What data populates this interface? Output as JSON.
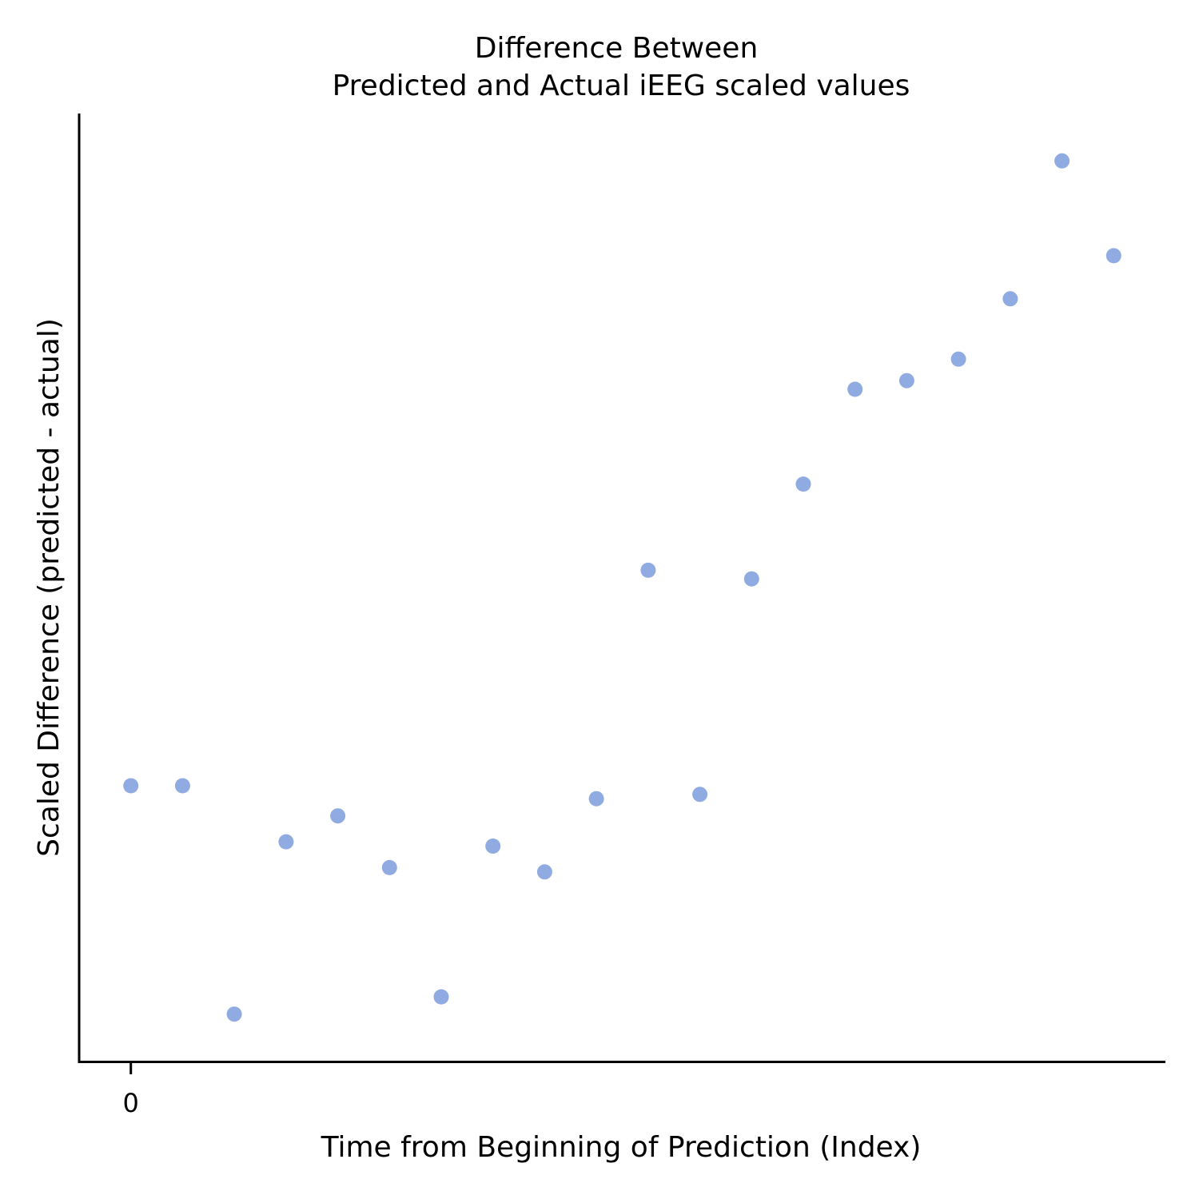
{
  "chart_data": {
    "type": "scatter",
    "title_lines": [
      "Difference Between",
      "Predicted and Actual iEEG scaled values"
    ],
    "xlabel": "Time from Beginning of Prediction (Index)",
    "ylabel": "Scaled Difference (predicted - actual)",
    "x_ticks": [
      0
    ],
    "y_ticks": [],
    "xlim": [
      -1,
      20
    ],
    "ylim": [
      -0.2,
      2.0
    ],
    "grid": false,
    "legend": "none",
    "marker_color": "#8fabe1",
    "axis_color": "#000000",
    "x": [
      0,
      1,
      2,
      3,
      4,
      5,
      6,
      7,
      8,
      9,
      10,
      11,
      12,
      13,
      14,
      15,
      16,
      17,
      18,
      19
    ],
    "y": [
      0.44,
      0.44,
      -0.09,
      0.31,
      0.37,
      0.25,
      -0.05,
      0.3,
      0.24,
      0.41,
      0.94,
      0.42,
      0.92,
      1.14,
      1.36,
      1.38,
      1.43,
      1.57,
      1.89,
      1.67
    ]
  }
}
